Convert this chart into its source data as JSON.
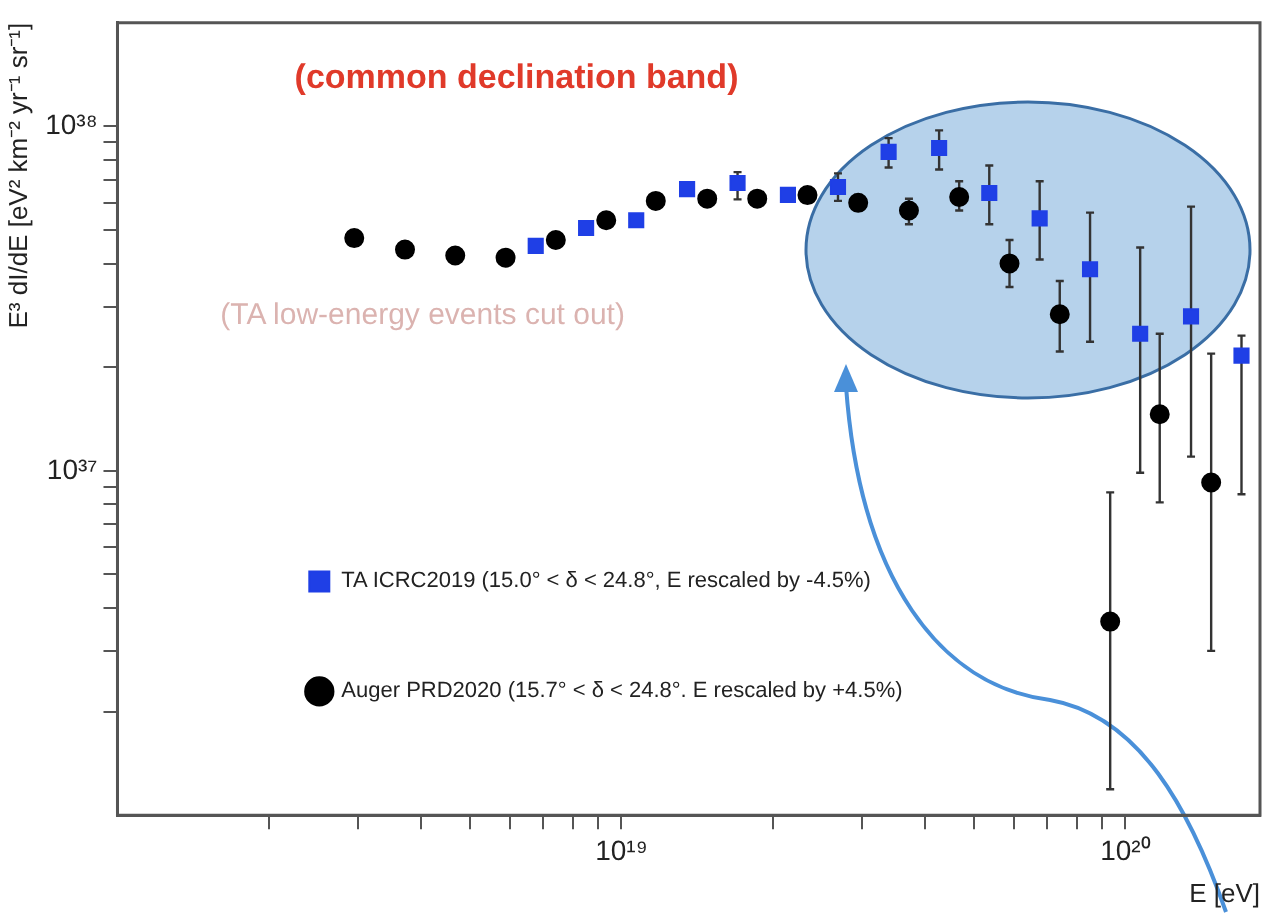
{
  "chart_data": {
    "type": "scatter",
    "xlabel": "E [eV]",
    "ylabel": "E³ dI/dE [eV² km⁻² yr⁻¹ sr⁻¹]",
    "log": "xy",
    "grid": false,
    "legend": "left",
    "xlim": [
      1e+18,
      1.85e+20
    ],
    "ylim": [
      1e+36,
      2e+38
    ],
    "xticks": [
      {
        "value": 2e+18,
        "label": null
      },
      {
        "value": 3e+18,
        "label": null
      },
      {
        "value": 4e+18,
        "label": null
      },
      {
        "value": 5e+18,
        "label": null
      },
      {
        "value": 6e+18,
        "label": null
      },
      {
        "value": 7e+18,
        "label": null
      },
      {
        "value": 8e+18,
        "label": null
      },
      {
        "value": 9e+18,
        "label": null
      },
      {
        "value": 1e+19,
        "label": "10¹⁹"
      },
      {
        "value": 2e+19,
        "label": null
      },
      {
        "value": 3e+19,
        "label": null
      },
      {
        "value": 4e+19,
        "label": null
      },
      {
        "value": 5e+19,
        "label": null
      },
      {
        "value": 6e+19,
        "label": null
      },
      {
        "value": 7e+19,
        "label": null
      },
      {
        "value": 8e+19,
        "label": null
      },
      {
        "value": 9e+19,
        "label": null
      },
      {
        "value": 1e+20,
        "label": "10²⁰"
      }
    ],
    "yticks": [
      {
        "value": 2e+36,
        "label": null
      },
      {
        "value": 3e+36,
        "label": null
      },
      {
        "value": 4e+36,
        "label": null
      },
      {
        "value": 5e+36,
        "label": null
      },
      {
        "value": 6e+36,
        "label": null
      },
      {
        "value": 7e+36,
        "label": null
      },
      {
        "value": 8e+36,
        "label": null
      },
      {
        "value": 9e+36,
        "label": null
      },
      {
        "value": 1e+37,
        "label": "10³⁷"
      },
      {
        "value": 2e+37,
        "label": null
      },
      {
        "value": 3e+37,
        "label": null
      },
      {
        "value": 4e+37,
        "label": null
      },
      {
        "value": 5e+37,
        "label": null
      },
      {
        "value": 6e+37,
        "label": null
      },
      {
        "value": 7e+37,
        "label": null
      },
      {
        "value": 8e+37,
        "label": null
      },
      {
        "value": 9e+37,
        "label": null
      },
      {
        "value": 1e+38,
        "label": "10³⁸"
      }
    ],
    "annotations": [
      "(common declination band)",
      "(TA low-energy events cut out)"
    ],
    "series": [
      {
        "name": "TA ICRC2019 (15.0° < δ < 24.8°, E rescaled by -4.5%)",
        "color": "#1f3fe6",
        "marker": "square",
        "x": [
          6.76e+18,
          8.51e+18,
          1.07e+19,
          1.35e+19,
          1.7e+19,
          2.14e+19,
          2.69e+19,
          3.39e+19,
          4.27e+19,
          5.37e+19,
          6.76e+19,
          8.51e+19,
          1.07e+20,
          1.35e+20,
          1.7e+20
        ],
        "values": [
          4.5e+37,
          5.07e+37,
          5.34e+37,
          6.58e+37,
          6.85e+37,
          6.33e+37,
          6.67e+37,
          8.44e+37,
          8.66e+37,
          6.41e+37,
          5.41e+37,
          3.85e+37,
          2.5e+37,
          2.81e+37,
          2.16e+37
        ],
        "errors": [
          null,
          null,
          null,
          null,
          [
            6.14e+37,
            7.37e+37
          ],
          null,
          [
            6.08e+37,
            7.31e+37
          ],
          [
            7.6e+37,
            9.25e+37
          ],
          [
            7.5e+37,
            9.74e+37
          ],
          [
            5.2e+37,
            7.7e+37
          ],
          [
            4.11e+37,
            6.93e+37
          ],
          [
            2.37e+37,
            5.62e+37
          ],
          [
            9.87e+36,
            4.45e+37
          ],
          [
            1.1e+37,
            5.85e+37
          ],
          [
            8.55e+36,
            2.47e+37
          ]
        ]
      },
      {
        "name": "Auger PRD2020 (15.7° < δ < 24.8°. E rescaled by +4.5%)",
        "color": "#000000",
        "marker": "circle",
        "x": [
          2.95e+18,
          3.72e+18,
          4.68e+18,
          5.89e+18,
          7.41e+18,
          9.33e+18,
          1.17e+19,
          1.48e+19,
          1.86e+19,
          2.34e+19,
          2.95e+19,
          3.72e+19,
          4.68e+19,
          5.89e+19,
          7.41e+19,
          9.33e+19,
          1.17e+20,
          1.48e+20
        ],
        "values": [
          4.74e+37,
          4.39e+37,
          4.22e+37,
          4.16e+37,
          4.68e+37,
          5.34e+37,
          6.08e+37,
          6.17e+37,
          6.17e+37,
          6.32e+37,
          6e+37,
          5.7e+37,
          6.24e+37,
          4e+37,
          2.85e+37,
          3.65e+36,
          1.46e+37,
          9.25e+36
        ],
        "errors": [
          null,
          null,
          null,
          null,
          null,
          null,
          null,
          null,
          null,
          null,
          [
            5.7e+37,
            6.33e+37
          ],
          [
            5.2e+37,
            6.17e+37
          ],
          [
            5.7e+37,
            6.93e+37
          ],
          [
            3.42e+37,
            4.68e+37
          ],
          [
            2.22e+37,
            3.56e+37
          ],
          [
            1.19e+36,
            8.66e+36
          ],
          [
            8.1e+36,
            2.5e+37
          ],
          [
            3e+36,
            2.19e+37
          ]
        ]
      }
    ]
  }
}
